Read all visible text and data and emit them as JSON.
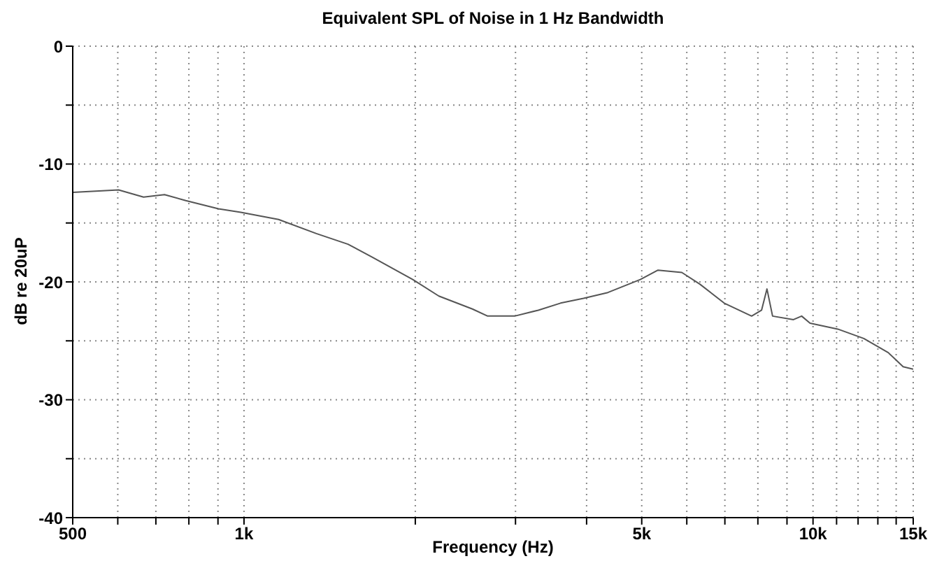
{
  "chart_data": {
    "type": "line",
    "title": "Equivalent SPL of Noise in 1 Hz Bandwidth",
    "xlabel": "Frequency (Hz)",
    "ylabel": "dB re 20uP",
    "log": "x",
    "grid": true,
    "legend": false,
    "marker": "none",
    "line_style": "solid",
    "x": [
      500,
      602,
      666,
      725,
      790,
      902,
      987,
      1150,
      1340,
      1523,
      1680,
      1980,
      2200,
      2520,
      2680,
      2990,
      3290,
      3600,
      3950,
      4360,
      4970,
      5340,
      5880,
      6330,
      6980,
      7800,
      8120,
      8300,
      8490,
      9240,
      9550,
      9880,
      11050,
      12280,
      13560,
      14400,
      15000
    ],
    "series": [
      {
        "color": "#555555",
        "values": [
          -12.4,
          -12.2,
          -12.8,
          -12.6,
          -13.1,
          -13.8,
          -14.1,
          -14.7,
          -15.9,
          -16.8,
          -17.9,
          -19.8,
          -21.2,
          -22.3,
          -22.9,
          -22.9,
          -22.4,
          -21.8,
          -21.4,
          -20.9,
          -19.8,
          -19.0,
          -19.2,
          -20.2,
          -21.8,
          -22.9,
          -22.4,
          -20.6,
          -22.9,
          -23.2,
          -22.9,
          -23.5,
          -24.0,
          -24.8,
          -26.0,
          -27.2,
          -27.4
        ]
      }
    ],
    "xlim": [
      500,
      15000
    ],
    "xticks": [
      500,
      {
        "value": 600,
        "label": null
      },
      {
        "value": 700,
        "label": null
      },
      {
        "value": 800,
        "label": null
      },
      {
        "value": 900,
        "label": null
      },
      {
        "value": 1000,
        "label": "1k"
      },
      {
        "value": 2000,
        "label": null
      },
      {
        "value": 3000,
        "label": null
      },
      {
        "value": 4000,
        "label": null
      },
      {
        "value": 5000,
        "label": "5k"
      },
      {
        "value": 6000,
        "label": null
      },
      {
        "value": 7000,
        "label": null
      },
      {
        "value": 8000,
        "label": null
      },
      {
        "value": 9000,
        "label": null
      },
      {
        "value": 10000,
        "label": "10k"
      },
      {
        "value": 11000,
        "label": null
      },
      {
        "value": 12000,
        "label": null
      },
      {
        "value": 13000,
        "label": null
      },
      {
        "value": 14000,
        "label": null
      },
      {
        "value": 15000,
        "label": "15k"
      }
    ],
    "ylim": [
      -40,
      0
    ],
    "yticks": [
      -40,
      {
        "value": -35,
        "label": null
      },
      -30,
      {
        "value": -25,
        "label": null
      },
      -20,
      {
        "value": -15,
        "label": null
      },
      -10,
      {
        "value": -5,
        "label": null
      },
      0
    ]
  }
}
